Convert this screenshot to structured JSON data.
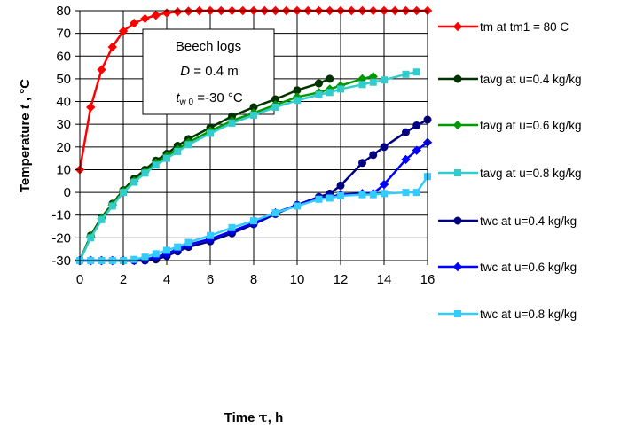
{
  "chart_data": {
    "type": "line",
    "xlabel_main": "Time ",
    "xlabel_sym": "τ",
    "xlabel_unit": ", h",
    "ylabel_main": "Temperature ",
    "ylabel_sym": "t",
    "ylabel_unit": " ,  °C",
    "xlim": [
      0,
      16
    ],
    "ylim": [
      -30,
      80
    ],
    "xticks": [
      0,
      2,
      4,
      6,
      8,
      10,
      12,
      14,
      16
    ],
    "yticks": [
      -30,
      -20,
      -10,
      0,
      10,
      20,
      30,
      40,
      50,
      60,
      70,
      80
    ],
    "grid": "both",
    "legend_position": "right",
    "annotation": {
      "line1": "Beech logs",
      "line2_sym": "D",
      "line2_val": " = 0.4 m",
      "line3_sym": "t",
      "line3_sub": "w 0",
      "line3_val": " =-30 °C"
    },
    "series": [
      {
        "name": "tm  at  tm1 = 80 C",
        "color": "#ff0000",
        "marker": "diamond",
        "x": [
          0,
          0.5,
          1,
          1.5,
          2,
          2.5,
          3,
          3.5,
          4,
          4.5,
          5,
          5.5,
          6,
          6.5,
          7,
          7.5,
          8,
          8.5,
          9,
          9.5,
          10,
          10.5,
          11,
          11.5,
          12,
          12.5,
          13,
          13.5,
          14,
          14.5,
          15,
          15.5,
          16
        ],
        "values": [
          10,
          37.5,
          54,
          64,
          71,
          74.5,
          76.5,
          78,
          79,
          79.5,
          79.8,
          80,
          80,
          80,
          80,
          80,
          80,
          80,
          80,
          80,
          80,
          80,
          80,
          80,
          80,
          80,
          80,
          80,
          80,
          80,
          80,
          80,
          80
        ]
      },
      {
        "name": "tavg at u=0.4 kg/kg",
        "color": "#003300",
        "marker": "circle",
        "x": [
          0,
          0.5,
          1,
          1.5,
          2,
          2.5,
          3,
          3.5,
          4,
          4.5,
          5,
          6,
          7,
          8,
          9,
          10,
          11,
          11.5
        ],
        "values": [
          -30,
          -19,
          -11,
          -5,
          1,
          6,
          10,
          14,
          17,
          20.5,
          23.5,
          28.5,
          33.5,
          37.5,
          41,
          45,
          48,
          50
        ]
      },
      {
        "name": "tavg at u=0.6 kg/kg",
        "color": "#009900",
        "marker": "diamond",
        "x": [
          0,
          0.5,
          1,
          1.5,
          2,
          2.5,
          3,
          3.5,
          4,
          4.5,
          5,
          6,
          7,
          8,
          9,
          10,
          11,
          11.5,
          12,
          13,
          13.5
        ],
        "values": [
          -30,
          -19.5,
          -11.5,
          -5.5,
          0.5,
          5,
          9,
          13,
          16,
          19,
          22,
          27,
          31.5,
          35,
          38.5,
          42,
          44,
          45.5,
          47,
          50,
          51
        ]
      },
      {
        "name": "tavg at u=0.8 kg/kg",
        "color": "#33cccc",
        "marker": "square",
        "x": [
          0,
          0.5,
          1,
          1.5,
          2,
          2.5,
          3,
          3.5,
          4,
          4.5,
          5,
          6,
          7,
          8,
          9,
          10,
          11,
          11.5,
          12,
          13,
          13.5,
          14,
          15,
          15.5
        ],
        "values": [
          -30,
          -20,
          -12,
          -6,
          0,
          4.5,
          8.5,
          12,
          15,
          18,
          21,
          26,
          30.5,
          34,
          37.5,
          40.5,
          43,
          44,
          45.5,
          47.5,
          48.5,
          49.5,
          52,
          53
        ]
      },
      {
        "name": "twc at  u=0.4 kg/kg",
        "color": "#000080",
        "marker": "circle",
        "x": [
          0,
          0.5,
          1,
          1.5,
          2,
          2.5,
          3,
          3.5,
          4,
          4.5,
          5,
          6,
          7,
          8,
          9,
          10,
          11,
          11.5,
          12,
          13,
          13.5,
          14,
          15,
          15.5,
          16
        ],
        "values": [
          -30,
          -30,
          -30,
          -30,
          -30,
          -30,
          -30,
          -29.5,
          -28,
          -26,
          -24,
          -21.5,
          -18,
          -14,
          -9.5,
          -5.5,
          -2,
          -0.5,
          3,
          13,
          16.5,
          20,
          26.5,
          29.5,
          32
        ]
      },
      {
        "name": "twc at  u=0.6 kg/kg",
        "color": "#0000ff",
        "marker": "diamond",
        "x": [
          0,
          0.5,
          1,
          1.5,
          2,
          2.5,
          3,
          3.5,
          4,
          4.5,
          5,
          6,
          7,
          8,
          9,
          10,
          11,
          11.5,
          12,
          13,
          13.5,
          14,
          15,
          15.5,
          16
        ],
        "values": [
          -30,
          -30,
          -30,
          -30,
          -30,
          -30,
          -29.5,
          -28.5,
          -27,
          -25,
          -23,
          -20.5,
          -17,
          -13.5,
          -9,
          -5.5,
          -2.5,
          -2,
          -1,
          -0.5,
          -0.5,
          3.5,
          14.5,
          18.5,
          22
        ]
      },
      {
        "name": "twc at  u=0.8 kg/kg",
        "color": "#33ccff",
        "marker": "square",
        "x": [
          0,
          0.5,
          1,
          1.5,
          2,
          2.5,
          3,
          3.5,
          4,
          4.5,
          5,
          6,
          7,
          8,
          9,
          10,
          11,
          11.5,
          12,
          13,
          13.5,
          14,
          15,
          15.5,
          16
        ],
        "values": [
          -30,
          -30,
          -30,
          -30,
          -30,
          -29.5,
          -28.5,
          -27,
          -25.5,
          -24,
          -22,
          -19,
          -15.5,
          -12.5,
          -9,
          -6,
          -3,
          -2.5,
          -1.5,
          -1,
          -1,
          -0.5,
          0,
          0,
          7
        ]
      }
    ]
  }
}
